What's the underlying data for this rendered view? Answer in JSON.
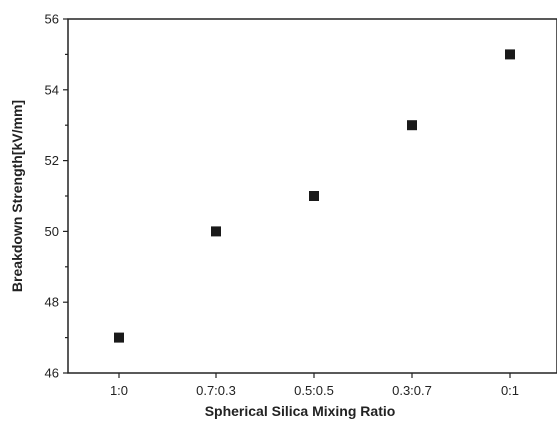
{
  "chart_data": {
    "type": "scatter",
    "title": "",
    "xlabel": "Spherical Silica Mixing Ratio",
    "ylabel": "Breakdown Strength[kV/mm]",
    "categories": [
      "1:0",
      "0.7:0.3",
      "0.5:0.5",
      "0.3:0.7",
      "0:1"
    ],
    "series": [
      {
        "values": [
          47.0,
          50.0,
          51.0,
          53.0,
          55.0
        ],
        "marker": "square",
        "color": "#1a1a1a"
      }
    ],
    "ylim": [
      46,
      56
    ],
    "yticks": [
      46,
      48,
      50,
      52,
      54,
      56
    ],
    "grid": false,
    "legend": "none"
  }
}
